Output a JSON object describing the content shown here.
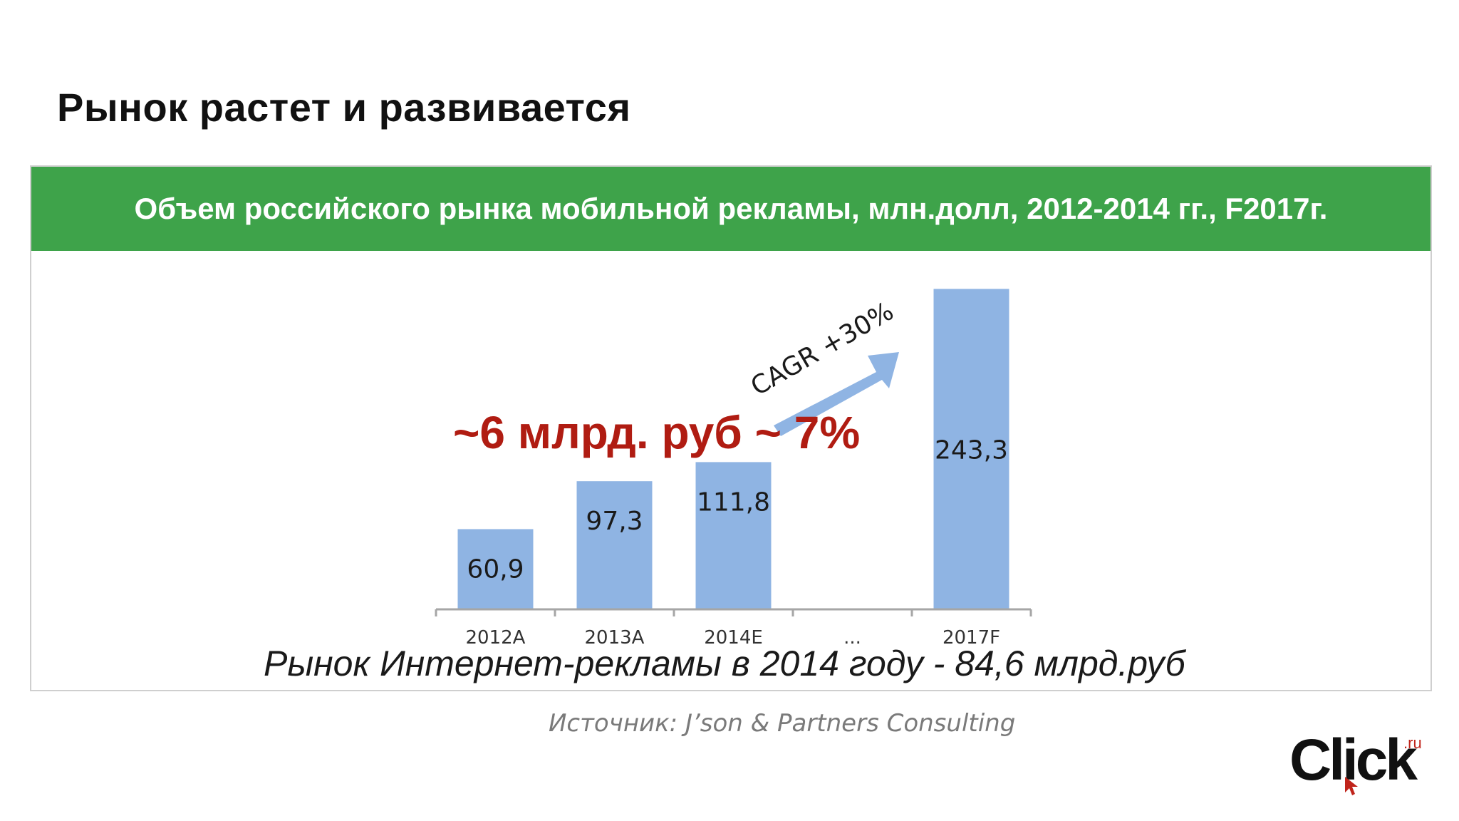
{
  "slide": {
    "title": "Рынок растет и развивается",
    "panel_header": "Объем российского рынка мобильной рекламы, млн.долл, 2012-2014 гг., F2017г.",
    "callout": "~6 млрд. руб ~ 7%",
    "subnote": "Рынок Интернет-рекламы в 2014 году  - 84,6 млрд.руб",
    "source": "Источник: J’son & Partners Consulting",
    "logo_text": "Click",
    "logo_superscript": ".ru",
    "logo_cursor_icon": "cursor-arrow-icon"
  },
  "colors": {
    "header_green": "#3ea34a",
    "bar_blue": "#8fb4e3",
    "callout_red": "#b01c12",
    "arrow_blue": "#8fb4e3"
  },
  "chart_data": {
    "type": "bar",
    "title": "Объем российского рынка мобильной рекламы, млн.долл, 2012-2014 гг., F2017г.",
    "xlabel": "",
    "ylabel": "",
    "categories": [
      "2012A",
      "2013A",
      "2014E",
      "...",
      "2017F"
    ],
    "values": [
      60.9,
      97.3,
      111.8,
      null,
      243.3
    ],
    "labels": [
      "60,9",
      "97,3",
      "111,8",
      "",
      "243,3"
    ],
    "ylim": [
      0,
      250
    ],
    "grid": false,
    "annotation": {
      "text": "CAGR +30%"
    }
  }
}
